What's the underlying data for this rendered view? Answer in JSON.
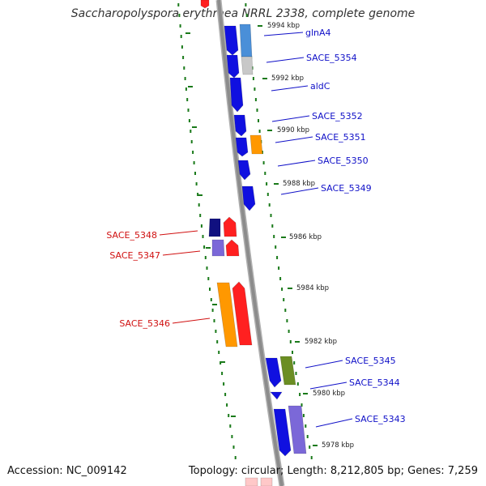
{
  "title": "Saccharopolyspora erythraea NRRL 2338, complete genome",
  "footer": {
    "accession": "Accession: NC_009142",
    "summary": "Topology: circular; Length: 8,212,805 bp; Genes: 7,259"
  },
  "colors": {
    "backbone": "#8c8c8c",
    "tick_mark": "#1a7a1a",
    "label_right": "#1010c8",
    "label_left": "#d01010"
  },
  "ticks": [
    "5994 kbp",
    "5992 kbp",
    "5990 kbp",
    "5988 kbp",
    "5986 kbp",
    "5984 kbp",
    "5982 kbp",
    "5980 kbp",
    "5978 kbp"
  ],
  "genes": [
    {
      "label": "glnA4",
      "side": "right"
    },
    {
      "label": "SACE_5354",
      "side": "right"
    },
    {
      "label": "aldC",
      "side": "right"
    },
    {
      "label": "SACE_5352",
      "side": "right"
    },
    {
      "label": "SACE_5351",
      "side": "right"
    },
    {
      "label": "SACE_5350",
      "side": "right"
    },
    {
      "label": "SACE_5349",
      "side": "right"
    },
    {
      "label": "SACE_5348",
      "side": "left"
    },
    {
      "label": "SACE_5347",
      "side": "left"
    },
    {
      "label": "SACE_5346",
      "side": "left"
    },
    {
      "label": "SACE_5345",
      "side": "right"
    },
    {
      "label": "SACE_5344",
      "side": "right"
    },
    {
      "label": "SACE_5343",
      "side": "right"
    }
  ]
}
